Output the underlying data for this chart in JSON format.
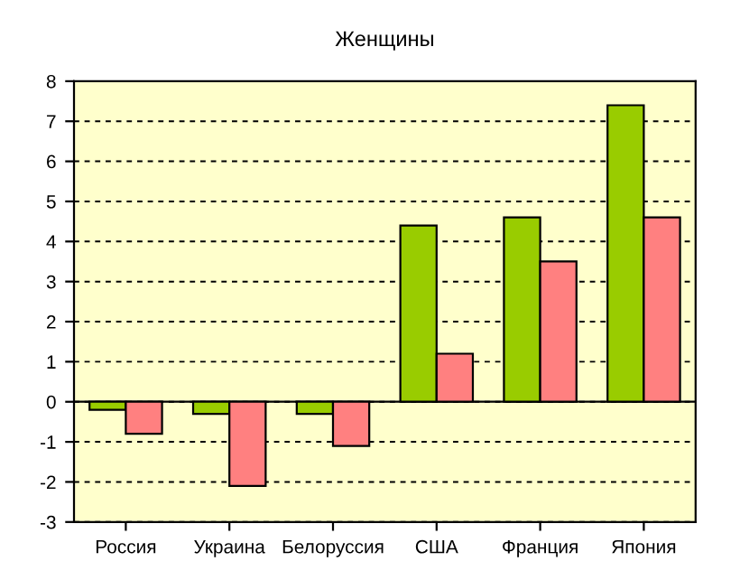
{
  "chart_data": {
    "type": "bar",
    "title": "Женщины",
    "categories": [
      "Россия",
      "Украина",
      "Белоруссия",
      "США",
      "Франция",
      "Япония"
    ],
    "series": [
      {
        "color": "#99cc00",
        "values": [
          -0.2,
          -0.3,
          -0.3,
          4.4,
          4.6,
          7.4
        ]
      },
      {
        "color": "#ff8080",
        "values": [
          -0.8,
          -2.1,
          -1.1,
          1.2,
          3.5,
          4.6
        ]
      }
    ],
    "ylim": [
      -3,
      8
    ],
    "yticks": [
      -3,
      -2,
      -1,
      0,
      1,
      2,
      3,
      4,
      5,
      6,
      7,
      8
    ],
    "grid": "y"
  }
}
